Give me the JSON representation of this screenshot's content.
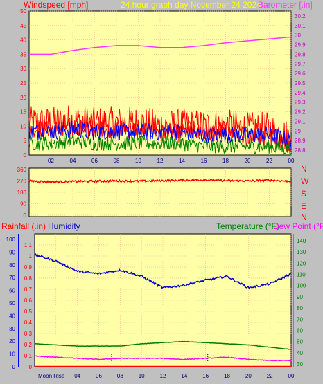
{
  "title": "24 hour graph day   November 24 2024",
  "colors": {
    "background": "#c0c0c0",
    "plot_bg": "#ffffa8",
    "grid": "#ff9999",
    "wind": "#ff0000",
    "gust_mid": "#0000ff",
    "wind_low": "#008000",
    "baro": "#ff33ff",
    "title": "#ffff00",
    "humidity": "#0000cc",
    "temperature": "#008000",
    "dewpoint": "#ff00ff",
    "rain": "#ff0000"
  },
  "top_panel": {
    "left_label": "Windspeed [mph]",
    "right_label": "Barometer [.in]",
    "left_ticks": [
      "0",
      "5",
      "10",
      "15",
      "20",
      "25",
      "30",
      "35",
      "40",
      "45",
      "50"
    ],
    "right_ticks": [
      "28.8",
      "28.9",
      "29",
      "29.1",
      "29.2",
      "29.3",
      "29.4",
      "29.5",
      "29.6",
      "29.7",
      "29.8",
      "29.9",
      "30",
      "30.1",
      "30.2"
    ],
    "x_ticks": [
      "02",
      "04",
      "06",
      "08",
      "10",
      "12",
      "14",
      "16",
      "18",
      "20",
      "22",
      "00"
    ]
  },
  "dir_panel": {
    "left_ticks": [
      "360",
      "270",
      "180",
      "90",
      "0"
    ],
    "right_labels": [
      "N",
      "W",
      "S",
      "E",
      "N"
    ]
  },
  "bottom_panel": {
    "rain_label": "Rainfall (.in)",
    "humidity_label": "Humidity",
    "temp_label": "Temperature (°F)",
    "dew_label": "Dew Point (°F)",
    "humidity_ticks": [
      "0",
      "10",
      "20",
      "30",
      "40",
      "50",
      "60",
      "70",
      "80",
      "90",
      "100"
    ],
    "rain_ticks": [
      "0",
      "0.1",
      "0.2",
      "0.3",
      "0.4",
      "0.5",
      "0.6",
      "0.7",
      "0.8",
      "0.9",
      "1",
      "1.1"
    ],
    "temp_ticks": [
      "30",
      "40",
      "50",
      "60",
      "70",
      "80",
      "90",
      "100",
      "110",
      "120",
      "130",
      "140"
    ],
    "x_ticks": [
      "02",
      "04",
      "06",
      "08",
      "10",
      "12",
      "14",
      "16",
      "18",
      "20",
      "22",
      "00"
    ],
    "moon_rise_label": "Moon Rise"
  },
  "chart_data": [
    {
      "type": "line",
      "title": "24 hour graph day   November 24 2024",
      "x": [
        0,
        2,
        4,
        6,
        8,
        10,
        12,
        14,
        16,
        18,
        20,
        22,
        24
      ],
      "x_tick_labels": [
        "02",
        "04",
        "06",
        "08",
        "10",
        "12",
        "14",
        "16",
        "18",
        "20",
        "22",
        "00"
      ],
      "series": [
        {
          "name": "Windspeed [mph]",
          "y_gust_max": [
            18,
            17,
            18,
            17,
            18,
            17,
            16,
            17,
            14,
            14,
            14,
            13,
            9
          ],
          "y_base": [
            11,
            11,
            12,
            11,
            11,
            11,
            10,
            10,
            10,
            10,
            9,
            9,
            6
          ]
        },
        {
          "y_mid": [
            8,
            8,
            9,
            8,
            8,
            8,
            8,
            8,
            7,
            7,
            7,
            7,
            5
          ]
        },
        {
          "y_low": [
            4,
            4,
            5,
            4,
            4,
            4,
            4,
            4,
            3,
            3,
            3,
            3,
            2
          ]
        },
        {
          "name": "Barometer [.in]",
          "y": [
            29.8,
            29.8,
            29.84,
            29.87,
            29.89,
            29.89,
            29.87,
            29.87,
            29.89,
            29.92,
            29.94,
            29.96,
            29.98
          ]
        }
      ],
      "ylim_left": [
        0,
        50
      ],
      "ylim_right": [
        28.75,
        30.25
      ]
    },
    {
      "type": "line",
      "x": [
        0,
        2,
        4,
        6,
        8,
        10,
        12,
        14,
        16,
        18,
        20,
        22,
        24
      ],
      "series": [
        {
          "y": [
            270,
            262,
            265,
            268,
            270,
            268,
            272,
            275,
            278,
            272,
            270,
            275,
            268
          ]
        }
      ],
      "ylim": [
        0,
        360
      ]
    },
    {
      "type": "line",
      "x": [
        0,
        2,
        4,
        6,
        8,
        10,
        12,
        14,
        16,
        18,
        20,
        22,
        24
      ],
      "series": [
        {
          "name": "Humidity",
          "y": [
            88,
            83,
            75,
            73,
            76,
            71,
            62,
            64,
            68,
            71,
            62,
            65,
            73
          ]
        },
        {
          "name": "Temperature (°F)",
          "y": [
            48,
            47,
            46,
            46,
            46,
            48,
            49,
            50,
            49,
            48,
            47,
            45,
            43
          ]
        },
        {
          "name": "Dew Point (°F)",
          "y": [
            37,
            36,
            35,
            34,
            35,
            35,
            35,
            34,
            35,
            36,
            34,
            33,
            33
          ]
        },
        {
          "name": "Rainfall (.in)",
          "y": [
            0,
            0,
            0,
            0,
            0,
            0,
            0,
            0,
            0,
            0,
            0,
            0,
            0
          ]
        }
      ],
      "ylim_humidity": [
        0,
        100
      ],
      "ylim_temp": [
        30,
        145
      ],
      "ylim_rain": [
        0,
        1.1
      ]
    }
  ]
}
